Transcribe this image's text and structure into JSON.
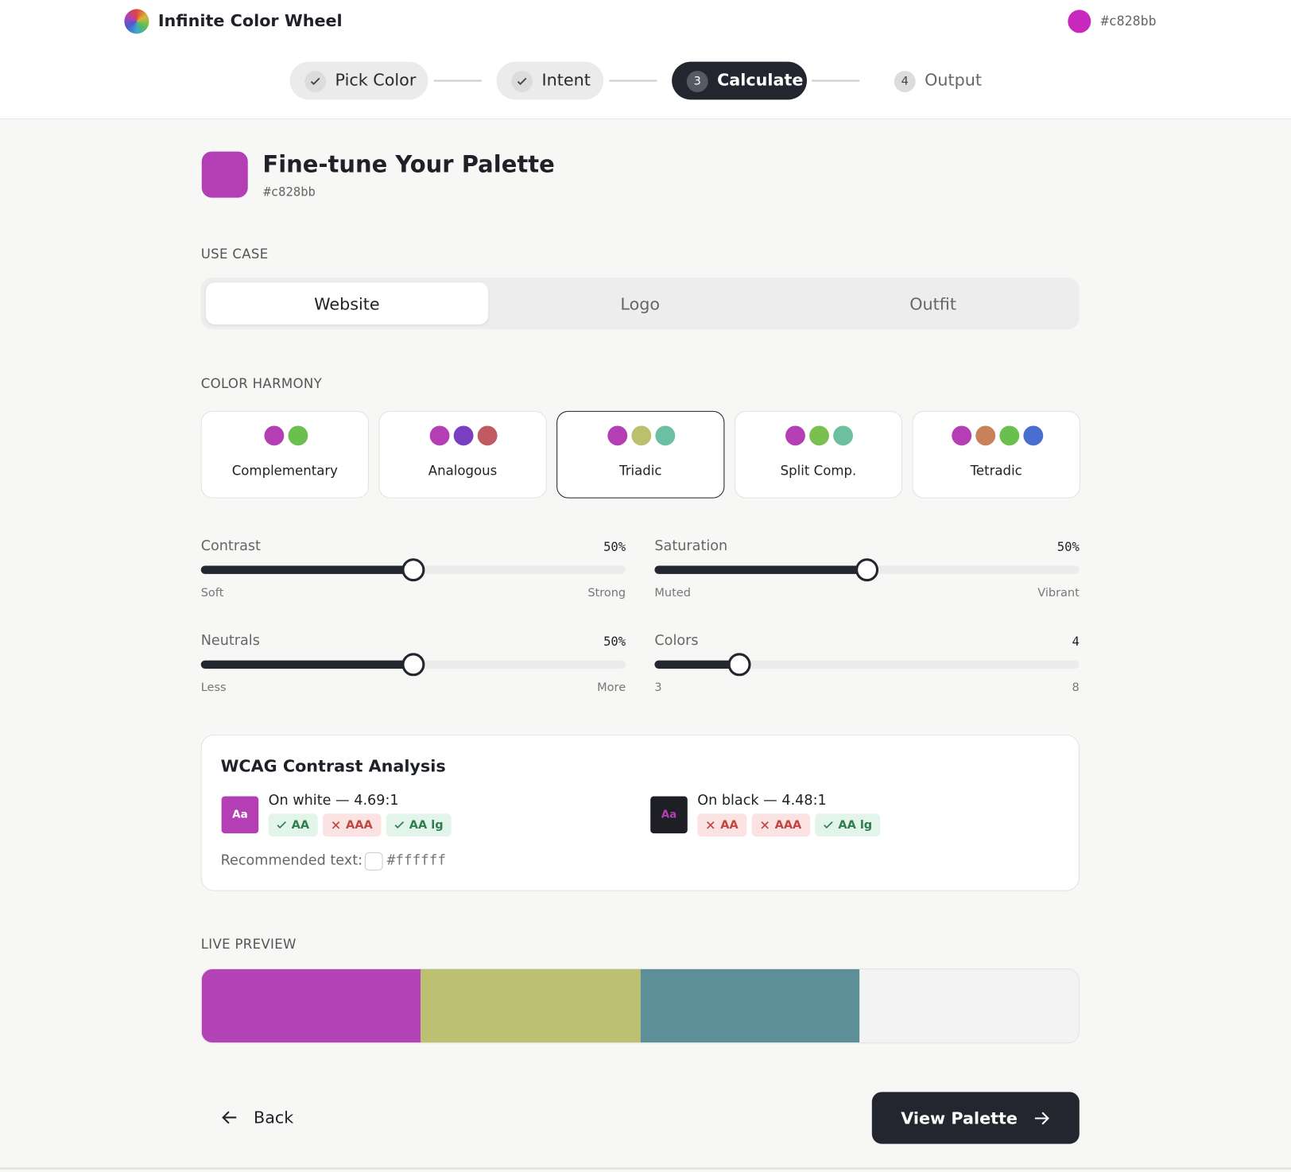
{
  "header": {
    "app_name": "Infinite Color Wheel",
    "current_color": "#c828bb"
  },
  "steps": [
    {
      "label": "Pick Color",
      "status": "done"
    },
    {
      "label": "Intent",
      "status": "done"
    },
    {
      "label": "Calculate",
      "number": "3",
      "status": "active"
    },
    {
      "label": "Output",
      "number": "4",
      "status": "upcoming"
    }
  ],
  "page": {
    "title": "Fine-tune Your Palette",
    "color": "#c828bb",
    "swatch_color": "#b43fb5"
  },
  "use_case": {
    "label": "USE CASE",
    "options": [
      "Website",
      "Logo",
      "Outfit"
    ],
    "selected": 0
  },
  "harmony": {
    "label": "COLOR HARMONY",
    "selected": 2,
    "options": [
      {
        "name": "Complementary",
        "colors": [
          "#b43fb5",
          "#6bbf4e"
        ]
      },
      {
        "name": "Analogous",
        "colors": [
          "#b43fb5",
          "#7a3fc0",
          "#c05a60"
        ]
      },
      {
        "name": "Triadic",
        "colors": [
          "#b43fb5",
          "#bbc06f",
          "#6cbfa3"
        ]
      },
      {
        "name": "Split Comp.",
        "colors": [
          "#b43fb5",
          "#7bc04f",
          "#6cc0a0"
        ]
      },
      {
        "name": "Tetradic",
        "colors": [
          "#b43fb5",
          "#c8825a",
          "#6bbf4e",
          "#4a6ed0"
        ]
      }
    ]
  },
  "sliders": [
    {
      "label": "Contrast",
      "value": "50%",
      "min_label": "Soft",
      "max_label": "Strong"
    },
    {
      "label": "Saturation",
      "value": "50%",
      "min_label": "Muted",
      "max_label": "Vibrant"
    },
    {
      "label": "Neutrals",
      "value": "50%",
      "min_label": "Less",
      "max_label": "More"
    },
    {
      "label": "Colors",
      "value": "4",
      "min_label": "3",
      "max_label": "8"
    }
  ],
  "wcag": {
    "title": "WCAG Contrast Analysis",
    "sample_text": "Aa",
    "rows": [
      {
        "label": "On white — 4.69:1",
        "background": "#b43fb5",
        "text_color": "#ffffff",
        "badges": [
          {
            "text": "AA",
            "pass": true
          },
          {
            "text": "AAA",
            "pass": false
          },
          {
            "text": "AA lg",
            "pass": true
          }
        ]
      },
      {
        "label": "On black — 4.48:1",
        "background": "#1e1f24",
        "text_color": "#b43fb5",
        "badges": [
          {
            "text": "AA",
            "pass": false
          },
          {
            "text": "AAA",
            "pass": false
          },
          {
            "text": "AA lg",
            "pass": true
          }
        ]
      }
    ],
    "recommended_label": "Recommended text:",
    "recommended_color": "#ffffff"
  },
  "preview": {
    "label": "LIVE PREVIEW",
    "colors": [
      "#b443b5",
      "#bbc170",
      "#5c8f98",
      "#f3f3f3"
    ]
  },
  "actions": {
    "back": "Back",
    "next": "View Palette"
  }
}
